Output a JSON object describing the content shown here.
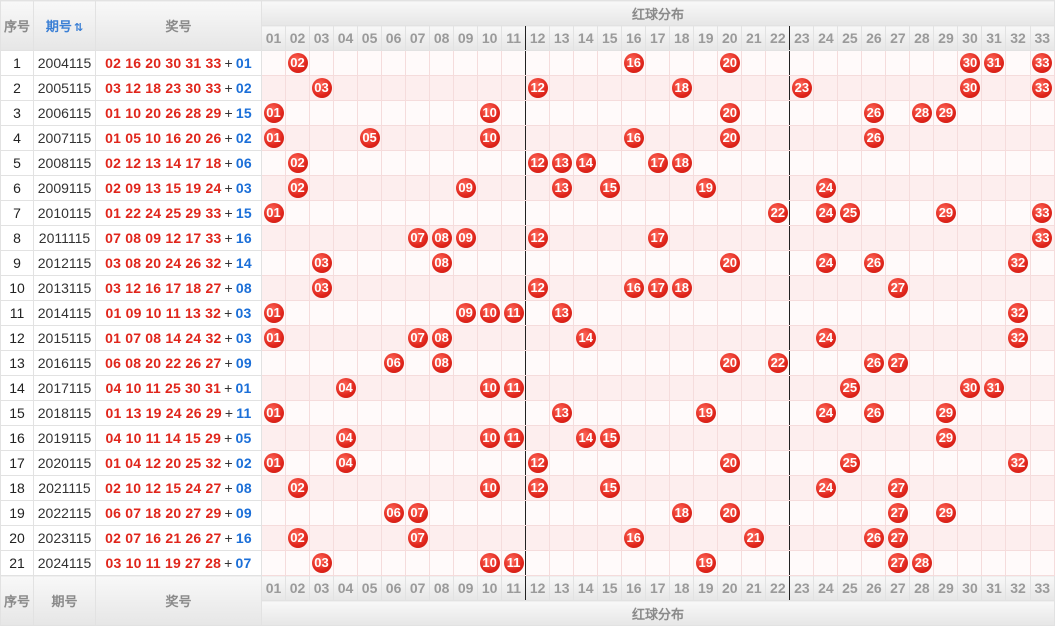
{
  "header": {
    "index_label": "序号",
    "period_label": "期号",
    "sort_mark": "⇅",
    "prize_label": "奖号",
    "distribution_title": "红球分布"
  },
  "footer": {
    "index_label": "序号",
    "period_label": "期号",
    "prize_label": "奖号",
    "distribution_title": "红球分布"
  },
  "columns": [
    "01",
    "02",
    "03",
    "04",
    "05",
    "06",
    "07",
    "08",
    "09",
    "10",
    "11",
    "12",
    "13",
    "14",
    "15",
    "16",
    "17",
    "18",
    "19",
    "20",
    "21",
    "22",
    "23",
    "24",
    "25",
    "26",
    "27",
    "28",
    "29",
    "30",
    "31",
    "32",
    "33"
  ],
  "colors": {
    "red_ball": "#e0251b",
    "blue_number": "#1b6fd8",
    "header_bg": "#eeeeee"
  },
  "rows": [
    {
      "index": "1",
      "period": "2004115",
      "reds": [
        "02",
        "16",
        "20",
        "30",
        "31",
        "33"
      ],
      "blue": "01"
    },
    {
      "index": "2",
      "period": "2005115",
      "reds": [
        "03",
        "12",
        "18",
        "23",
        "30",
        "33"
      ],
      "blue": "02"
    },
    {
      "index": "3",
      "period": "2006115",
      "reds": [
        "01",
        "10",
        "20",
        "26",
        "28",
        "29"
      ],
      "blue": "15"
    },
    {
      "index": "4",
      "period": "2007115",
      "reds": [
        "01",
        "05",
        "10",
        "16",
        "20",
        "26"
      ],
      "blue": "02"
    },
    {
      "index": "5",
      "period": "2008115",
      "reds": [
        "02",
        "12",
        "13",
        "14",
        "17",
        "18"
      ],
      "blue": "06"
    },
    {
      "index": "6",
      "period": "2009115",
      "reds": [
        "02",
        "09",
        "13",
        "15",
        "19",
        "24"
      ],
      "blue": "03"
    },
    {
      "index": "7",
      "period": "2010115",
      "reds": [
        "01",
        "22",
        "24",
        "25",
        "29",
        "33"
      ],
      "blue": "15"
    },
    {
      "index": "8",
      "period": "2011115",
      "reds": [
        "07",
        "08",
        "09",
        "12",
        "17",
        "33"
      ],
      "blue": "16"
    },
    {
      "index": "9",
      "period": "2012115",
      "reds": [
        "03",
        "08",
        "20",
        "24",
        "26",
        "32"
      ],
      "blue": "14"
    },
    {
      "index": "10",
      "period": "2013115",
      "reds": [
        "03",
        "12",
        "16",
        "17",
        "18",
        "27"
      ],
      "blue": "08"
    },
    {
      "index": "11",
      "period": "2014115",
      "reds": [
        "01",
        "09",
        "10",
        "11",
        "13",
        "32"
      ],
      "blue": "03"
    },
    {
      "index": "12",
      "period": "2015115",
      "reds": [
        "01",
        "07",
        "08",
        "14",
        "24",
        "32"
      ],
      "blue": "03"
    },
    {
      "index": "13",
      "period": "2016115",
      "reds": [
        "06",
        "08",
        "20",
        "22",
        "26",
        "27"
      ],
      "blue": "09"
    },
    {
      "index": "14",
      "period": "2017115",
      "reds": [
        "04",
        "10",
        "11",
        "25",
        "30",
        "31"
      ],
      "blue": "01"
    },
    {
      "index": "15",
      "period": "2018115",
      "reds": [
        "01",
        "13",
        "19",
        "24",
        "26",
        "29"
      ],
      "blue": "11"
    },
    {
      "index": "16",
      "period": "2019115",
      "reds": [
        "04",
        "10",
        "11",
        "14",
        "15",
        "29"
      ],
      "blue": "05"
    },
    {
      "index": "17",
      "period": "2020115",
      "reds": [
        "01",
        "04",
        "12",
        "20",
        "25",
        "32"
      ],
      "blue": "02"
    },
    {
      "index": "18",
      "period": "2021115",
      "reds": [
        "02",
        "10",
        "12",
        "15",
        "24",
        "27"
      ],
      "blue": "08"
    },
    {
      "index": "19",
      "period": "2022115",
      "reds": [
        "06",
        "07",
        "18",
        "20",
        "27",
        "29"
      ],
      "blue": "09"
    },
    {
      "index": "20",
      "period": "2023115",
      "reds": [
        "02",
        "07",
        "16",
        "21",
        "26",
        "27"
      ],
      "blue": "16"
    },
    {
      "index": "21",
      "period": "2024115",
      "reds": [
        "03",
        "10",
        "11",
        "19",
        "27",
        "28"
      ],
      "blue": "07"
    }
  ]
}
